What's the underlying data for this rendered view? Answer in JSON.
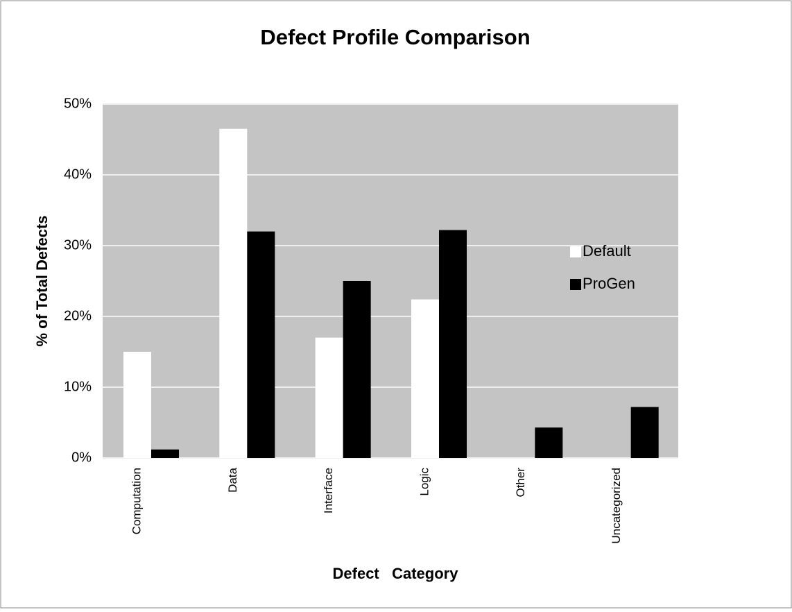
{
  "chart_data": {
    "type": "bar",
    "title": "Defect Profile Comparison",
    "x_label": "Defect   Category",
    "y_label": "% of Total Defects",
    "categories": [
      "Computation",
      "Data",
      "Interface",
      "Logic",
      "Other",
      "Uncategorized"
    ],
    "series": [
      {
        "name": "Default",
        "color": "#ffffff",
        "values": [
          15,
          46.5,
          17,
          22.4,
          0,
          0
        ]
      },
      {
        "name": "ProGen",
        "color": "#000000",
        "values": [
          1.2,
          32,
          25,
          32.2,
          4.3,
          7.2
        ]
      }
    ],
    "ylim": [
      0,
      50
    ],
    "yticks": [
      {
        "value": 0,
        "label": "0%"
      },
      {
        "value": 10,
        "label": "10%"
      },
      {
        "value": 20,
        "label": "20%"
      },
      {
        "value": 30,
        "label": "30%"
      },
      {
        "value": 40,
        "label": "40%"
      },
      {
        "value": 50,
        "label": "50%"
      }
    ],
    "grid": true,
    "legend": "right"
  }
}
